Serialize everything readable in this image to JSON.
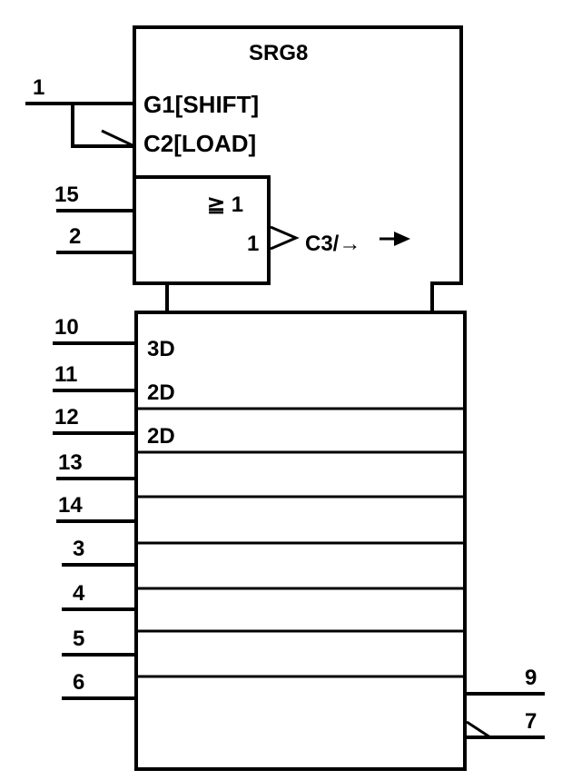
{
  "symbol": {
    "title": "SRG8",
    "control_labels": {
      "g1": "G1[SHIFT]",
      "c2": "C2[LOAD]",
      "or_gate": "≧ 1",
      "or_output_mark": "1",
      "c3": "C3/→"
    },
    "cell_labels": [
      "3D",
      "2D",
      "2D",
      "",
      "",
      "",
      "",
      ""
    ]
  },
  "pins": {
    "shift_load": "1",
    "clock_a": "15",
    "clock_b": "2",
    "data": [
      "10",
      "11",
      "12",
      "13",
      "14",
      "3",
      "4",
      "5",
      "6"
    ],
    "output_q": "9",
    "output_q_bar": "7"
  }
}
